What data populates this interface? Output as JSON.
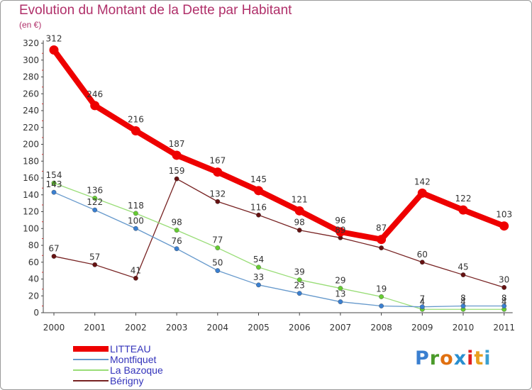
{
  "title": "Evolution du Montant de la Dette par Habitant",
  "subtitle": "(en €)",
  "brand": {
    "letters": [
      "P",
      "r",
      "o",
      "x",
      "i",
      "t",
      "i"
    ],
    "colors": [
      "#3a7fd0",
      "#4a9a2a",
      "#e07010",
      "#2a8fd0",
      "#e02020",
      "#e8a020",
      "#3aa0d0"
    ]
  },
  "chart_data": {
    "type": "line",
    "x": [
      "2000",
      "2001",
      "2002",
      "2003",
      "2004",
      "2005",
      "2006",
      "2007",
      "2008",
      "2009",
      "2010",
      "2011"
    ],
    "ylim": [
      0,
      320
    ],
    "yticks": [
      0,
      20,
      40,
      60,
      80,
      100,
      120,
      140,
      160,
      180,
      200,
      220,
      240,
      260,
      280,
      300,
      320
    ],
    "grid": false,
    "legend_position": "bottom-left",
    "series": [
      {
        "name": "LITTEAU",
        "color": "#ee0000",
        "values": [
          312,
          246,
          216,
          187,
          167,
          145,
          121,
          96,
          87,
          142,
          122,
          103
        ],
        "labels": [
          "312",
          "246",
          "216",
          "187",
          "167",
          "145",
          "121",
          "96",
          "87",
          "142",
          "122",
          "103"
        ]
      },
      {
        "name": "Montfiquet",
        "color": "#6699cc",
        "marker_color": "#3a7fd0",
        "values": [
          143,
          122,
          100,
          76,
          50,
          33,
          23,
          13,
          8,
          7,
          8,
          8
        ],
        "labels": [
          "143",
          "122",
          "100",
          "76",
          "50",
          "33",
          "23",
          "13",
          "",
          "7",
          "8",
          "8"
        ]
      },
      {
        "name": "La Bazoque",
        "color": "#99dd77",
        "marker_color": "#66cc33",
        "values": [
          154,
          136,
          118,
          98,
          77,
          54,
          39,
          29,
          19,
          4,
          4,
          4
        ],
        "labels": [
          "154",
          "136",
          "118",
          "98",
          "77",
          "54",
          "39",
          "29",
          "19",
          "4",
          "4",
          "4"
        ]
      },
      {
        "name": "Bérigny",
        "color": "#772222",
        "marker_color": "#661111",
        "values": [
          67,
          57,
          41,
          159,
          132,
          116,
          98,
          89,
          77,
          60,
          45,
          30
        ],
        "labels": [
          "67",
          "57",
          "41",
          "159",
          "132",
          "116",
          "98",
          "89",
          "",
          "60",
          "45",
          "30"
        ]
      }
    ]
  }
}
